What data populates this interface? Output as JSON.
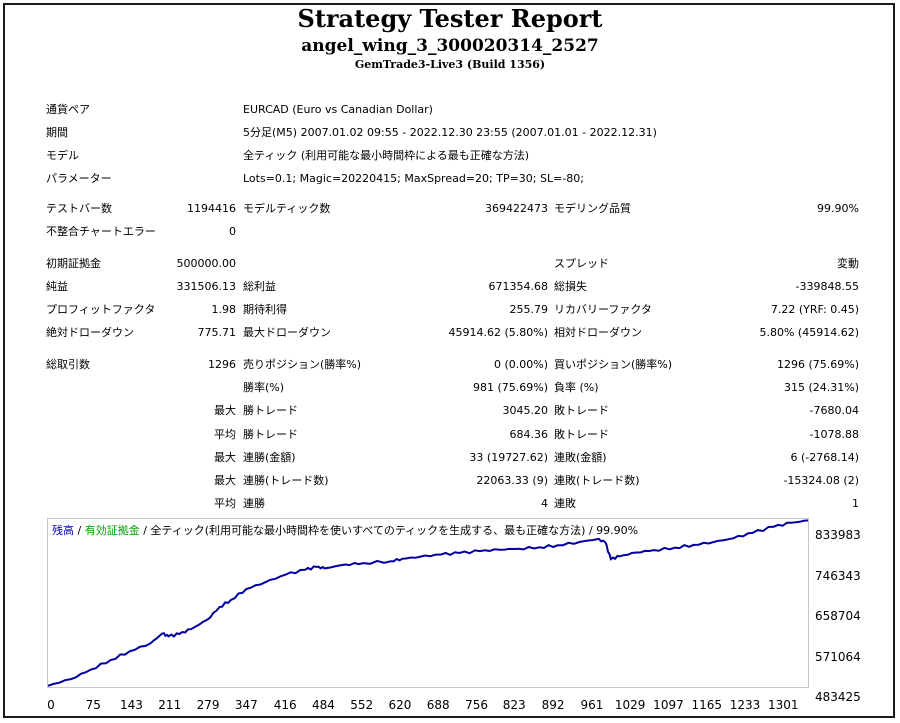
{
  "header": {
    "title": "Strategy Tester Report",
    "expert": "angel_wing_3_300020314_2527",
    "server": "GemTrade3-Live3 (Build 1356)"
  },
  "info": {
    "symbol_label": "通貨ペア",
    "symbol_value": "EURCAD (Euro vs Canadian Dollar)",
    "period_label": "期間",
    "period_value": "5分足(M5) 2007.01.02 09:55 - 2022.12.30 23:55 (2007.01.01 - 2022.12.31)",
    "model_label": "モデル",
    "model_value": "全ティック (利用可能な最小時間枠による最も正確な方法)",
    "params_label": "パラメーター",
    "params_value": "Lots=0.1; Magic=20220415; MaxSpread=20; TP=30; SL=-80;"
  },
  "stats": {
    "bars_label": "テストバー数",
    "bars_value": "1194416",
    "ticks_label": "モデルティック数",
    "ticks_value": "369422473",
    "quality_label": "モデリング品質",
    "quality_value": "99.90%",
    "errors_label": "不整合チャートエラー",
    "errors_value": "0",
    "deposit_label": "初期証拠金",
    "deposit_value": "500000.00",
    "spread_label": "スプレッド",
    "spread_value": "変動",
    "net_label": "純益",
    "net_value": "331506.13",
    "gross_profit_label": "総利益",
    "gross_profit_value": "671354.68",
    "gross_loss_label": "総損失",
    "gross_loss_value": "-339848.55",
    "pf_label": "プロフィットファクタ",
    "pf_value": "1.98",
    "expected_label": "期待利得",
    "expected_value": "255.79",
    "recovery_label": "リカバリーファクタ",
    "recovery_value": "7.22 (YRF: 0.45)",
    "abs_dd_label": "絶対ドローダウン",
    "abs_dd_value": "775.71",
    "max_dd_label": "最大ドローダウン",
    "max_dd_value": "45914.62 (5.80%)",
    "rel_dd_label": "相対ドローダウン",
    "rel_dd_value": "5.80% (45914.62)",
    "trades_label": "総取引数",
    "trades_value": "1296",
    "short_label": "売りポジション(勝率%)",
    "short_value": "0 (0.00%)",
    "long_label": "買いポジション(勝率%)",
    "long_value": "1296 (75.69%)",
    "win_rate_label": "勝率(%)",
    "win_rate_value": "981 (75.69%)",
    "loss_rate_label": "負率 (%)",
    "loss_rate_value": "315 (24.31%)",
    "max_prefix": "最大",
    "avg_prefix": "平均",
    "largest_win_label": "勝トレード",
    "largest_win_value": "3045.20",
    "largest_loss_label": "敗トレード",
    "largest_loss_value": "-7680.04",
    "avg_win_label": "勝トレード",
    "avg_win_value": "684.36",
    "avg_loss_label": "敗トレード",
    "avg_loss_value": "-1078.88",
    "max_consec_win_label": "連勝(金額)",
    "max_consec_win_value": "33 (19727.62)",
    "max_consec_loss_label": "連敗(金額)",
    "max_consec_loss_value": "6 (-2768.14)",
    "max_consec_profit_label": "連勝(トレード数)",
    "max_consec_profit_value": "22063.33 (9)",
    "max_consec_lossamt_label": "連敗(トレード数)",
    "max_consec_lossamt_value": "-15324.08 (2)",
    "avg_consec_win_label": "連勝",
    "avg_consec_win_value": "4",
    "avg_consec_loss_label": "連敗",
    "avg_consec_loss_value": "1"
  },
  "chart_legend": {
    "balance": "残高",
    "sep1": " / ",
    "equity": "有効証拠金",
    "sep2": " / ",
    "rest": "全ティック(利用可能な最小時間枠を使いすべてのティックを生成する、最も正確な方法) / 99.90%"
  },
  "chart_data": {
    "type": "line",
    "x_ticks": [
      "0",
      "75",
      "143",
      "211",
      "279",
      "347",
      "416",
      "484",
      "552",
      "620",
      "688",
      "756",
      "823",
      "892",
      "961",
      "1029",
      "1097",
      "1165",
      "1233",
      "1301"
    ],
    "y_ticks": [
      "833983",
      "746343",
      "658704",
      "571064",
      "483425"
    ],
    "xlim": [
      0,
      1330
    ],
    "ylim": [
      483425,
      833983
    ],
    "series": [
      {
        "name": "残高",
        "color": "#0000a0",
        "x": [
          0,
          40,
          75,
          110,
          143,
          180,
          200,
          211,
          230,
          250,
          279,
          300,
          320,
          347,
          380,
          416,
          450,
          470,
          484,
          520,
          552,
          600,
          620,
          650,
          688,
          720,
          756,
          790,
          823,
          860,
          892,
          930,
          961,
          975,
          985,
          1000,
          1029,
          1060,
          1097,
          1130,
          1165,
          1200,
          1233,
          1270,
          1301,
          1330
        ],
        "y": [
          486000,
          500000,
          520000,
          540000,
          558000,
          575000,
          595000,
          589000,
          594000,
          604000,
          624000,
          650000,
          665000,
          688000,
          702000,
          718000,
          728000,
          734000,
          731000,
          739000,
          742000,
          746000,
          751000,
          755000,
          760000,
          763000,
          767000,
          770000,
          772000,
          775000,
          779000,
          786000,
          792000,
          786000,
          750000,
          756000,
          764000,
          769000,
          774000,
          780000,
          786000,
          794000,
          805000,
          818000,
          826000,
          831000
        ]
      }
    ]
  }
}
